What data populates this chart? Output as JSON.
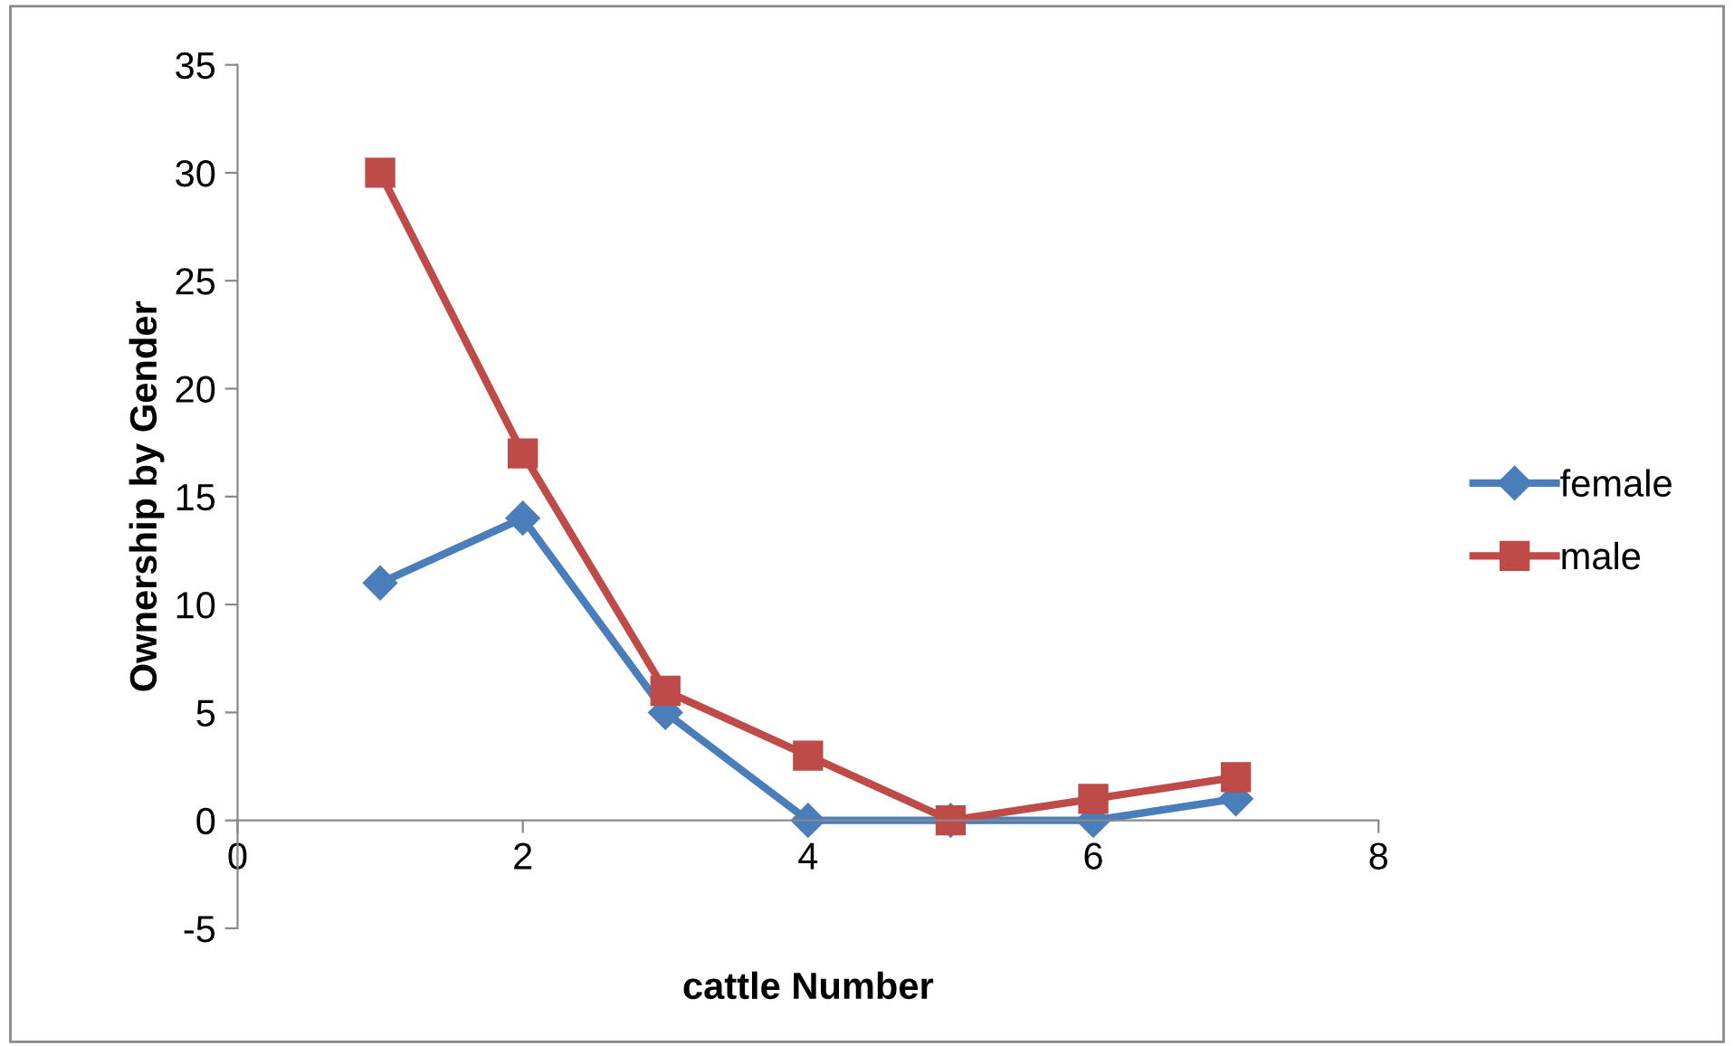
{
  "chart_data": {
    "type": "line",
    "xlabel": "cattle Number",
    "ylabel": "Ownership by Gender",
    "x": [
      1,
      2,
      3,
      4,
      5,
      6,
      7
    ],
    "series": [
      {
        "name": "female",
        "color": "#4a7ebb",
        "marker": "diamond",
        "values": [
          11,
          14,
          5,
          0,
          0,
          0,
          1
        ]
      },
      {
        "name": "male",
        "color": "#be4b48",
        "marker": "square",
        "values": [
          30,
          17,
          6,
          3,
          0,
          1,
          2
        ]
      }
    ],
    "xlim": [
      0,
      8
    ],
    "xticks": [
      0,
      2,
      4,
      6,
      8
    ],
    "ylim": [
      -5,
      35
    ],
    "yticks": [
      -5,
      0,
      5,
      10,
      15,
      20,
      25,
      30,
      35
    ],
    "grid": false,
    "legend": "right",
    "line_style": "solid"
  }
}
